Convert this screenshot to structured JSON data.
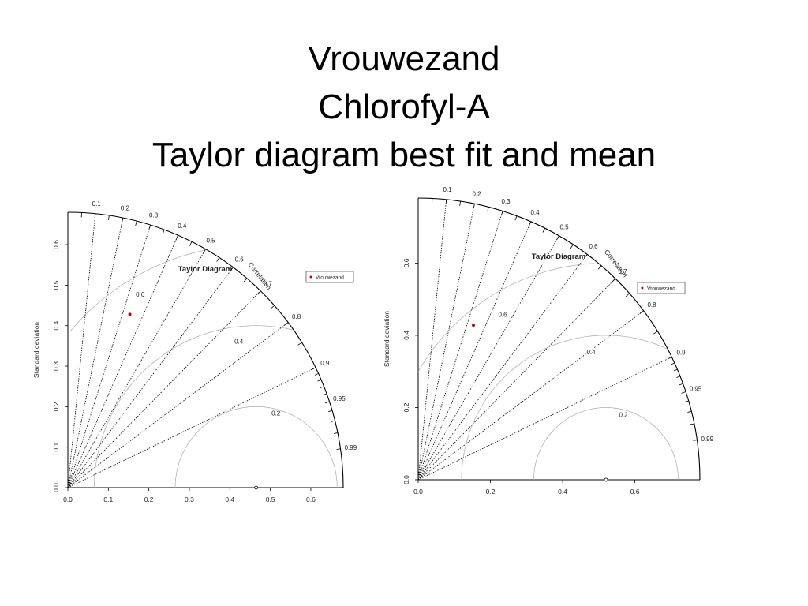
{
  "slide": {
    "title_lines": [
      "Vrouwezand",
      "Chlorofyl-A",
      "Taylor diagram best fit and mean"
    ]
  },
  "chart_data": [
    {
      "type": "scatter",
      "subtype": "taylor-diagram",
      "title": "Taylor Diagram",
      "ylabel": "Standard deviation",
      "xlabel": "",
      "arc_label": "Correlation",
      "legend": {
        "label": "Vrouwezand",
        "position": "top-right",
        "color": "#cc0000"
      },
      "x_ticks": [
        "0.0",
        "0.1",
        "0.2",
        "0.3",
        "0.4",
        "0.5",
        "0.6"
      ],
      "y_ticks": [
        "0.0",
        "0.1",
        "0.2",
        "0.3",
        "0.4",
        "0.5",
        "0.6"
      ],
      "correlation_labels": [
        "0.1",
        "0.2",
        "0.3",
        "0.4",
        "0.5",
        "0.6",
        "0.7",
        "0.8",
        "0.9",
        "0.95",
        "0.99"
      ],
      "rms_labels": [
        "0.2",
        "0.4",
        "0.6"
      ],
      "sd_max": 0.68,
      "reference_sd": 0.465,
      "model": {
        "x": 0.153,
        "y": 0.428
      },
      "grid": true
    },
    {
      "type": "scatter",
      "subtype": "taylor-diagram",
      "title": "Taylor Diagram",
      "ylabel": "Standard deviation",
      "xlabel": "",
      "arc_label": "Correlation",
      "legend": {
        "label": "Vrouwezand",
        "position": "top-right",
        "color": "#cc0000"
      },
      "x_ticks": [
        "0.0",
        "0.2",
        "0.4",
        "0.6"
      ],
      "y_ticks": [
        "0.0",
        "0.2",
        "0.4",
        "0.6"
      ],
      "correlation_labels": [
        "0.1",
        "0.2",
        "0.3",
        "0.4",
        "0.5",
        "0.6",
        "0.7",
        "0.8",
        "0.9",
        "0.95",
        "0.99"
      ],
      "rms_labels": [
        "0.2",
        "0.4",
        "0.6"
      ],
      "sd_max": 0.78,
      "reference_sd": 0.52,
      "model": {
        "x": 0.153,
        "y": 0.428
      },
      "grid": true
    }
  ]
}
